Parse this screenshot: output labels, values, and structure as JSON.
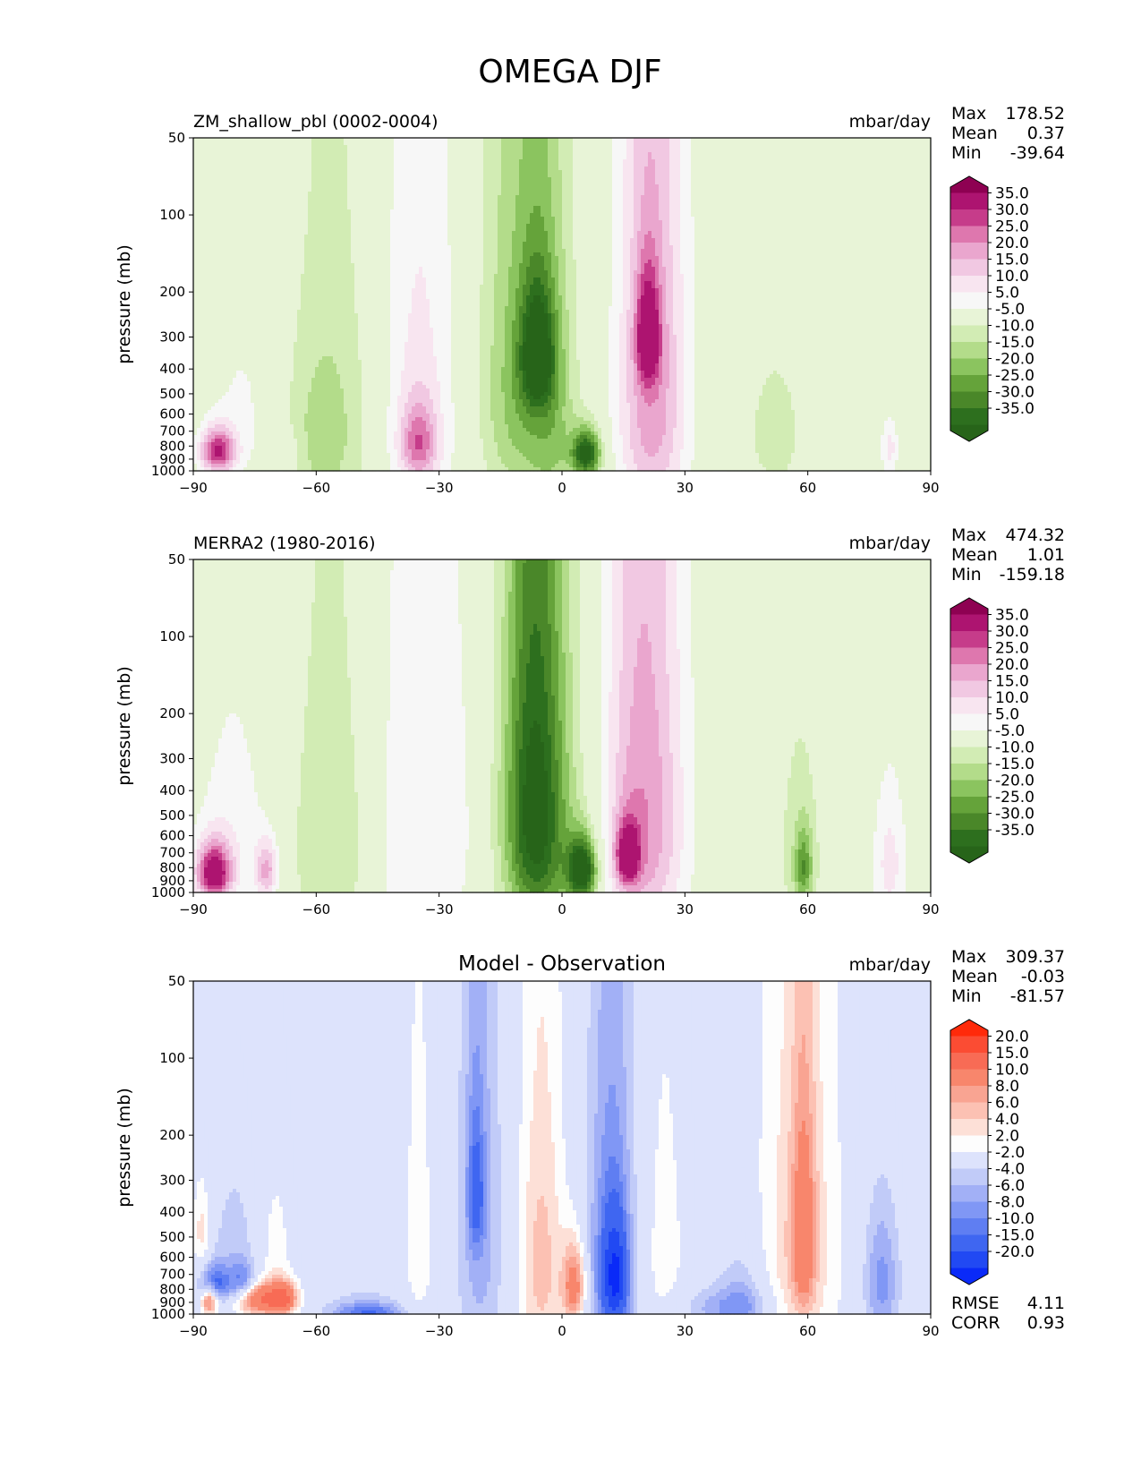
{
  "figure_title": "OMEGA DJF",
  "chart_data": [
    {
      "type": "heatmap",
      "title_left": "ZM_shallow_pbl (0002-0004)",
      "title_center": "",
      "units": "mbar/day",
      "xlabel": "",
      "ylabel": "pressure (mb)",
      "x_ticks": [
        "−90",
        "−60",
        "−30",
        "0",
        "30",
        "60",
        "90"
      ],
      "xlim": [
        -90,
        90
      ],
      "y_ticks": [
        "50",
        "100",
        "200",
        "300",
        "400",
        "500",
        "600",
        "700",
        "800",
        "900",
        "1000"
      ],
      "ylim": [
        1000,
        50
      ],
      "stats": [
        {
          "label": "Max",
          "value": "178.52"
        },
        {
          "label": "Mean",
          "value": "0.37"
        },
        {
          "label": "Min",
          "value": "-39.64"
        }
      ],
      "colorbar": {
        "labels": [
          "35.0",
          "30.0",
          "25.0",
          "20.0",
          "15.0",
          "10.0",
          "5.0",
          "-5.0",
          "-10.0",
          "-15.0",
          "-20.0",
          "-25.0",
          "-30.0",
          "-35.0"
        ],
        "colors": [
          "#8e0152",
          "#ad1470",
          "#c63c8a",
          "#de77ae",
          "#eaa6ce",
          "#f1c8e2",
          "#f8e5f0",
          "#f7f7f7",
          "#e8f4d7",
          "#d2ecb4",
          "#b3dc8a",
          "#8bc45f",
          "#65a33a",
          "#4a8729",
          "#2d6f1e",
          "#276419"
        ]
      },
      "blobs": [
        {
          "lat": -84,
          "p": 840,
          "w": 3,
          "h": 120,
          "v": 35
        },
        {
          "lat": -78,
          "p": 600,
          "w": 6,
          "h": 350,
          "v": 6
        },
        {
          "lat": -68,
          "p": 850,
          "w": 3,
          "h": 100,
          "v": 6
        },
        {
          "lat": -55,
          "p": 650,
          "w": 8,
          "h": 600,
          "v": -8
        },
        {
          "lat": -60,
          "p": 750,
          "w": 6,
          "h": 400,
          "v": -6
        },
        {
          "lat": -35,
          "p": 570,
          "w": 7,
          "h": 720,
          "v": 12
        },
        {
          "lat": -35,
          "p": 780,
          "w": 3,
          "h": 180,
          "v": 20
        },
        {
          "lat": -10,
          "p": 480,
          "w": 7,
          "h": 520,
          "v": -18
        },
        {
          "lat": -6,
          "p": 350,
          "w": 3,
          "h": 140,
          "v": -30
        },
        {
          "lat": -2,
          "p": 700,
          "w": 4,
          "h": 500,
          "v": -10
        },
        {
          "lat": 6,
          "p": 860,
          "w": 2.5,
          "h": 130,
          "v": -38
        },
        {
          "lat": 22,
          "p": 500,
          "w": 6,
          "h": 620,
          "v": 24
        },
        {
          "lat": 21,
          "p": 300,
          "w": 2,
          "h": 100,
          "v": 30
        },
        {
          "lat": 52,
          "p": 720,
          "w": 6,
          "h": 380,
          "v": -7
        },
        {
          "lat": 80,
          "p": 820,
          "w": 1.5,
          "h": 150,
          "v": 12
        }
      ]
    },
    {
      "type": "heatmap",
      "title_left": "MERRA2 (1980-2016)",
      "title_center": "",
      "units": "mbar/day",
      "xlabel": "",
      "ylabel": "pressure (mb)",
      "x_ticks": [
        "−90",
        "−60",
        "−30",
        "0",
        "30",
        "60",
        "90"
      ],
      "xlim": [
        -90,
        90
      ],
      "y_ticks": [
        "50",
        "100",
        "200",
        "300",
        "400",
        "500",
        "600",
        "700",
        "800",
        "900",
        "1000"
      ],
      "ylim": [
        1000,
        50
      ],
      "stats": [
        {
          "label": "Max",
          "value": "474.32"
        },
        {
          "label": "Mean",
          "value": "1.01"
        },
        {
          "label": "Min",
          "value": "-159.18"
        }
      ],
      "colorbar": {
        "labels": [
          "35.0",
          "30.0",
          "25.0",
          "20.0",
          "15.0",
          "10.0",
          "5.0",
          "-5.0",
          "-10.0",
          "-15.0",
          "-20.0",
          "-25.0",
          "-30.0",
          "-35.0"
        ],
        "colors": [
          "#8e0152",
          "#ad1470",
          "#c63c8a",
          "#de77ae",
          "#eaa6ce",
          "#f1c8e2",
          "#f8e5f0",
          "#f7f7f7",
          "#e8f4d7",
          "#d2ecb4",
          "#b3dc8a",
          "#8bc45f",
          "#65a33a",
          "#4a8729",
          "#2d6f1e",
          "#276419"
        ]
      },
      "blobs": [
        {
          "lat": -85,
          "p": 840,
          "w": 3,
          "h": 150,
          "v": 40
        },
        {
          "lat": -80,
          "p": 600,
          "w": 7,
          "h": 420,
          "v": 8
        },
        {
          "lat": -72,
          "p": 820,
          "w": 2,
          "h": 150,
          "v": 20
        },
        {
          "lat": -56,
          "p": 650,
          "w": 8,
          "h": 580,
          "v": -10
        },
        {
          "lat": -38,
          "p": 650,
          "w": 7,
          "h": 700,
          "v": 10
        },
        {
          "lat": -25,
          "p": 550,
          "w": 4,
          "h": 650,
          "v": 5
        },
        {
          "lat": -7,
          "p": 450,
          "w": 5,
          "h": 480,
          "v": -28
        },
        {
          "lat": -4,
          "p": 650,
          "w": 7,
          "h": 650,
          "v": -14
        },
        {
          "lat": 5,
          "p": 820,
          "w": 2.5,
          "h": 160,
          "v": -42
        },
        {
          "lat": 20,
          "p": 500,
          "w": 7,
          "h": 620,
          "v": 25
        },
        {
          "lat": 16,
          "p": 720,
          "w": 2,
          "h": 140,
          "v": 33
        },
        {
          "lat": 58,
          "p": 700,
          "w": 4,
          "h": 450,
          "v": -8
        },
        {
          "lat": 59,
          "p": 800,
          "w": 1.5,
          "h": 180,
          "v": -18
        },
        {
          "lat": 80,
          "p": 780,
          "w": 3,
          "h": 350,
          "v": 12
        }
      ]
    },
    {
      "type": "heatmap",
      "title_left": "",
      "title_center": "Model - Observation",
      "units": "mbar/day",
      "xlabel": "",
      "ylabel": "pressure (mb)",
      "x_ticks": [
        "−90",
        "−60",
        "−30",
        "0",
        "30",
        "60",
        "90"
      ],
      "xlim": [
        -90,
        90
      ],
      "y_ticks": [
        "50",
        "100",
        "200",
        "300",
        "400",
        "500",
        "600",
        "700",
        "800",
        "900",
        "1000"
      ],
      "ylim": [
        1000,
        50
      ],
      "stats": [
        {
          "label": "Max",
          "value": "309.37"
        },
        {
          "label": "Mean",
          "value": "-0.03"
        },
        {
          "label": "Min",
          "value": "-81.57"
        }
      ],
      "extra_stats": [
        {
          "label": "RMSE",
          "value": "4.11"
        },
        {
          "label": "CORR",
          "value": "0.93"
        }
      ],
      "colorbar": {
        "labels": [
          "20.0",
          "15.0",
          "10.0",
          "8.0",
          "6.0",
          "4.0",
          "2.0",
          "-2.0",
          "-4.0",
          "-6.0",
          "-8.0",
          "-10.0",
          "-15.0",
          "-20.0"
        ],
        "colors": [
          "#ff2a0a",
          "#fb4c33",
          "#f86b55",
          "#f8866c",
          "#f9a492",
          "#fcc1b3",
          "#fde0d7",
          "#fdfdfd",
          "#dde3fc",
          "#c1cbf8",
          "#a2b0f6",
          "#8097f5",
          "#5f7ef2",
          "#3f66f1",
          "#2149f3",
          "#0a2af8"
        ]
      },
      "blobs": [
        {
          "lat": -88,
          "p": 480,
          "w": 1.5,
          "h": 150,
          "v": 5
        },
        {
          "lat": -85,
          "p": 780,
          "w": 2.5,
          "h": 100,
          "v": -12
        },
        {
          "lat": -78,
          "p": 780,
          "w": 2.5,
          "h": 100,
          "v": -10
        },
        {
          "lat": -75,
          "p": 870,
          "w": 4,
          "h": 90,
          "v": 16
        },
        {
          "lat": -68,
          "p": 870,
          "w": 2.5,
          "h": 90,
          "v": 14
        },
        {
          "lat": -86,
          "p": 880,
          "w": 1.5,
          "h": 80,
          "v": 16
        },
        {
          "lat": -80,
          "p": 550,
          "w": 4,
          "h": 250,
          "v": -3
        },
        {
          "lat": -70,
          "p": 600,
          "w": 3,
          "h": 300,
          "v": 3
        },
        {
          "lat": -35,
          "p": 550,
          "w": 3,
          "h": 600,
          "v": 3
        },
        {
          "lat": -20,
          "p": 500,
          "w": 4,
          "h": 600,
          "v": -5
        },
        {
          "lat": -21,
          "p": 330,
          "w": 1.5,
          "h": 150,
          "v": -8
        },
        {
          "lat": -5,
          "p": 650,
          "w": 4,
          "h": 550,
          "v": 7
        },
        {
          "lat": 3,
          "p": 780,
          "w": 2,
          "h": 200,
          "v": 12
        },
        {
          "lat": 12,
          "p": 650,
          "w": 4,
          "h": 550,
          "v": -9
        },
        {
          "lat": 13,
          "p": 720,
          "w": 2,
          "h": 220,
          "v": -14
        },
        {
          "lat": 25,
          "p": 600,
          "w": 4,
          "h": 550,
          "v": 3
        },
        {
          "lat": 40,
          "p": 950,
          "w": 8,
          "h": 120,
          "v": -5
        },
        {
          "lat": 44,
          "p": 850,
          "w": 4,
          "h": 250,
          "v": -4
        },
        {
          "lat": 58,
          "p": 550,
          "w": 7,
          "h": 650,
          "v": 6
        },
        {
          "lat": 59,
          "p": 500,
          "w": 2,
          "h": 300,
          "v": 9
        },
        {
          "lat": 78,
          "p": 750,
          "w": 3,
          "h": 300,
          "v": -7
        },
        {
          "lat": -47,
          "p": 985,
          "w": 6,
          "h": 50,
          "v": -8
        },
        {
          "lat": -48,
          "p": 920,
          "w": 7,
          "h": 100,
          "v": -3
        }
      ]
    }
  ]
}
